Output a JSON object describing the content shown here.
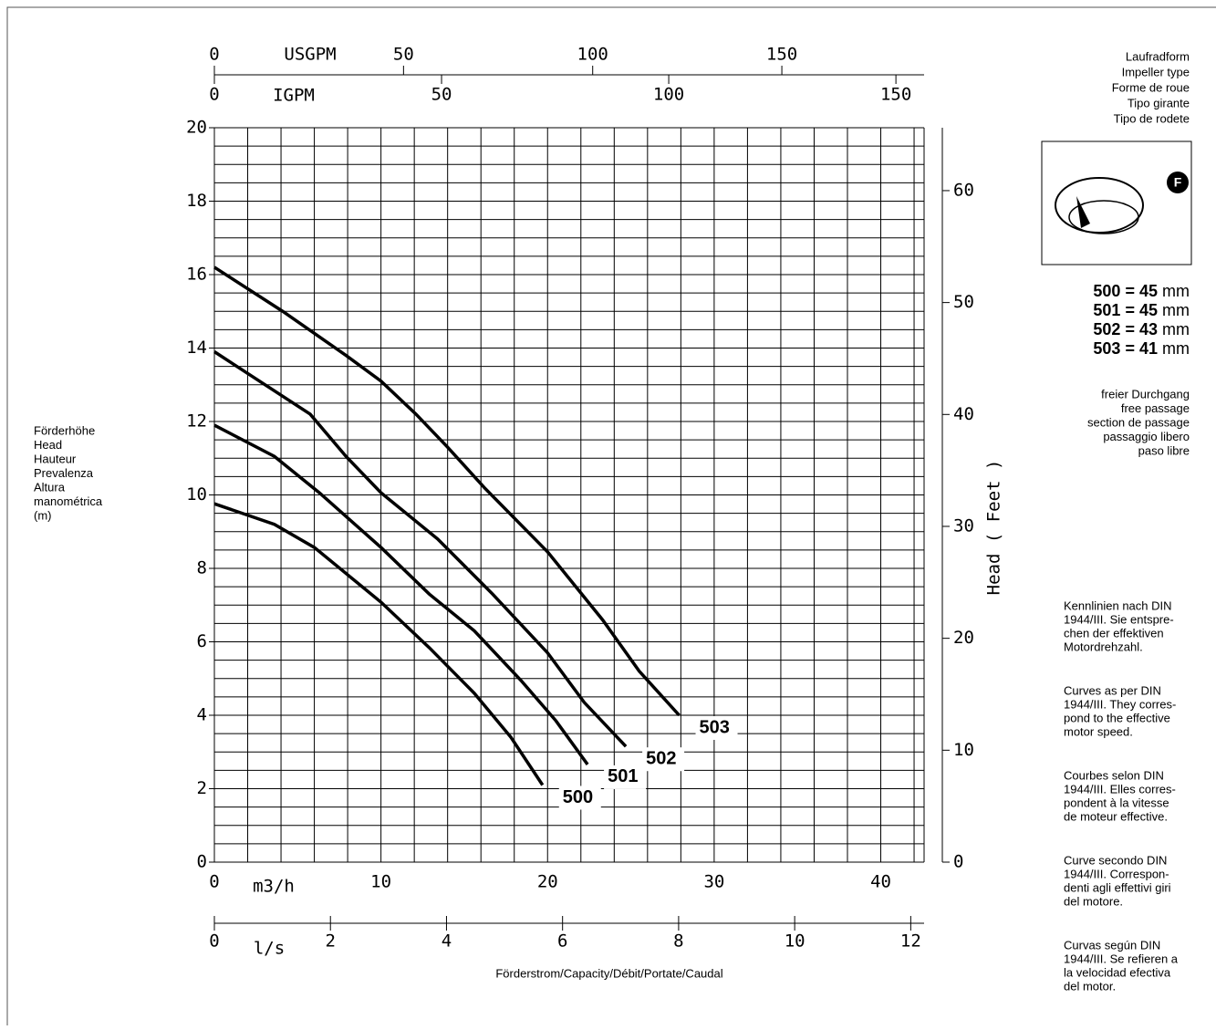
{
  "chart_data": {
    "type": "line",
    "x_label": "m3/h",
    "xlim": [
      0,
      42.6
    ],
    "xticks": [
      0,
      10,
      20,
      30,
      40
    ],
    "xgrid": [
      0,
      2,
      4,
      6,
      8,
      10,
      12,
      14,
      16,
      18,
      20,
      22,
      24,
      26,
      28,
      30,
      32,
      34,
      36,
      38,
      40,
      42
    ],
    "ylim": [
      0,
      20
    ],
    "yticks": [
      0,
      2,
      4,
      6,
      8,
      10,
      12,
      14,
      16,
      18,
      20
    ],
    "ygrid": [
      0,
      0.5,
      1,
      1.5,
      2,
      2.5,
      3,
      3.5,
      4,
      4.5,
      5,
      5.5,
      6,
      6.5,
      7,
      7.5,
      8,
      8.5,
      9,
      9.5,
      10,
      10.5,
      11,
      11.5,
      12,
      12.5,
      13,
      13.5,
      14,
      14.5,
      15,
      15.5,
      16,
      16.5,
      17,
      17.5,
      18,
      18.5,
      19,
      19.5,
      20
    ],
    "y2_label": "Head ( Feet )",
    "y2lim": [
      0,
      65.62
    ],
    "y2ticks": [
      0,
      10,
      20,
      30,
      40,
      50,
      60
    ],
    "usgpm_label": "USGPM",
    "usgpm_lim": [
      0,
      187.6
    ],
    "usgpm_ticks": [
      0,
      50,
      100,
      150
    ],
    "igpm_label": "IGPM",
    "igpm_lim": [
      0,
      156.2
    ],
    "igpm_ticks": [
      0,
      50,
      100,
      150
    ],
    "ls_label": "l/s",
    "ls_lim": [
      0,
      12.23
    ],
    "ls_ticks": [
      0,
      2,
      4,
      6,
      8,
      10,
      12
    ],
    "x_caption": "Förderstrom/Capacity/Débit/Portate/Caudal",
    "y_label_lines": [
      "Förderhöhe",
      "Head",
      "Hauteur",
      "Prevalenza",
      "Altura",
      "manométrica",
      "(m)"
    ],
    "color": "#000000",
    "series": [
      {
        "name": "503",
        "x": [
          0,
          4.1,
          7.9,
          10,
          12.1,
          14,
          16.2,
          20,
          23.3,
          25.5,
          27.9
        ],
        "values": [
          16.2,
          15.0,
          13.8,
          13.1,
          12.2,
          11.3,
          10.2,
          8.45,
          6.6,
          5.2,
          4.0
        ]
      },
      {
        "name": "502",
        "x": [
          0,
          5.75,
          7.9,
          10,
          13.4,
          16.7,
          20,
          22.2,
          24.7
        ],
        "values": [
          13.9,
          12.2,
          11.05,
          10.06,
          8.8,
          7.3,
          5.7,
          4.35,
          3.15
        ]
      },
      {
        "name": "501",
        "x": [
          0,
          3.6,
          6.3,
          10,
          12.9,
          15.6,
          18.4,
          20.5,
          22.4
        ],
        "values": [
          11.9,
          11.05,
          10.06,
          8.57,
          7.3,
          6.3,
          4.95,
          3.85,
          2.66
        ]
      },
      {
        "name": "500",
        "x": [
          0,
          3.6,
          6,
          10,
          12.9,
          15.6,
          17.8,
          19.7
        ],
        "values": [
          9.76,
          9.2,
          8.57,
          7.08,
          5.84,
          4.6,
          3.4,
          2.1
        ]
      }
    ]
  },
  "side_panel": {
    "impeller_lines": [
      "Laufradform",
      "Impeller type",
      "Forme de roue",
      "Tipo girante",
      "Tipo de rodete"
    ],
    "impeller_badge": "F",
    "sizes": [
      {
        "model": "500 = 45",
        "unit": "mm"
      },
      {
        "model": "501 = 45",
        "unit": "mm"
      },
      {
        "model": "502 = 43",
        "unit": "mm"
      },
      {
        "model": "503 = 41",
        "unit": "mm"
      }
    ],
    "passage_lines": [
      "freier Durchgang",
      "free passage",
      "section de passage",
      "passaggio libero",
      "paso libre"
    ],
    "notes": [
      [
        "Kennlinien nach DIN",
        "1944/III. Sie entspre-",
        "chen der effektiven",
        "Motordrehzahl."
      ],
      [
        "Curves as per DIN",
        "1944/III. They corres-",
        "pond to the effective",
        "motor speed."
      ],
      [
        "Courbes selon DIN",
        "1944/III. Elles corres-",
        "pondent à la vitesse",
        "de moteur effective."
      ],
      [
        "Curve secondo DIN",
        "1944/III. Correspon-",
        "denti agli effettivi giri",
        "del motore."
      ],
      [
        "Curvas según DIN",
        "1944/III. Se refieren a",
        "la velocidad efectiva",
        "del motor."
      ]
    ]
  }
}
